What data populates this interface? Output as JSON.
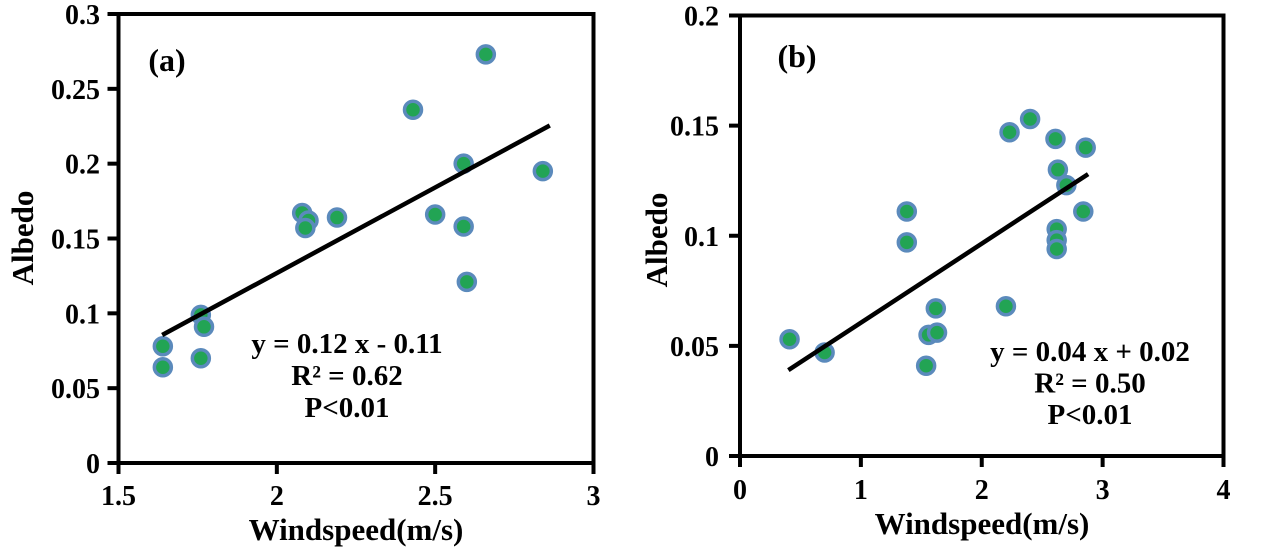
{
  "figure": {
    "background": "#ffffff",
    "description_visible_text_only": true
  },
  "chart_data": [
    {
      "type": "scatter",
      "panel_label": "(a)",
      "xlabel": "Windspeed(m/s)",
      "ylabel": "Albedo",
      "xlim": [
        1.5,
        3
      ],
      "ylim": [
        0,
        0.3
      ],
      "grid": false,
      "legend": "none",
      "xticks": [
        {
          "v": 1.5,
          "label": "1.5"
        },
        {
          "v": 2,
          "label": "2"
        },
        {
          "v": 2.5,
          "label": "2.5"
        },
        {
          "v": 3,
          "label": "3"
        }
      ],
      "yticks": [
        {
          "v": 0,
          "label": "0"
        },
        {
          "v": 0.05,
          "label": "0.05"
        },
        {
          "v": 0.1,
          "label": "0.1"
        },
        {
          "v": 0.15,
          "label": "0.15"
        },
        {
          "v": 0.2,
          "label": "0.2"
        },
        {
          "v": 0.25,
          "label": "0.25"
        },
        {
          "v": 0.3,
          "label": "0.3"
        }
      ],
      "points": [
        [
          1.64,
          0.078
        ],
        [
          1.64,
          0.064
        ],
        [
          1.76,
          0.099
        ],
        [
          1.77,
          0.091
        ],
        [
          1.76,
          0.07
        ],
        [
          2.08,
          0.167
        ],
        [
          2.1,
          0.162
        ],
        [
          2.09,
          0.157
        ],
        [
          2.19,
          0.164
        ],
        [
          2.43,
          0.236
        ],
        [
          2.5,
          0.166
        ],
        [
          2.59,
          0.158
        ],
        [
          2.6,
          0.121
        ],
        [
          2.59,
          0.2
        ],
        [
          2.66,
          0.273
        ],
        [
          2.84,
          0.195
        ]
      ],
      "trendline": {
        "x1": 1.638,
        "y1": 0.0855,
        "x2": 2.862,
        "y2": 0.2255
      },
      "equation_lines": [
        "y = 0.12 x - 0.11",
        "R² = 0.62",
        "P<0.01"
      ],
      "regression": {
        "slope": 0.12,
        "intercept": -0.11,
        "r_squared": 0.62,
        "p": "P<0.01"
      },
      "colors": {
        "marker_fill": "#22A454",
        "marker_stroke": "#5B8ABC",
        "trendline": "#000000",
        "axis": "#000000"
      }
    },
    {
      "type": "scatter",
      "panel_label": "(b)",
      "xlabel": "Windspeed(m/s)",
      "ylabel": "Albedo",
      "xlim": [
        0,
        4
      ],
      "ylim": [
        0,
        0.2
      ],
      "grid": false,
      "legend": "none",
      "xticks": [
        {
          "v": 0,
          "label": "0"
        },
        {
          "v": 1,
          "label": "1"
        },
        {
          "v": 2,
          "label": "2"
        },
        {
          "v": 3,
          "label": "3"
        },
        {
          "v": 4,
          "label": "4"
        }
      ],
      "yticks": [
        {
          "v": 0,
          "label": "0"
        },
        {
          "v": 0.05,
          "label": "0.05"
        },
        {
          "v": 0.1,
          "label": "0.1"
        },
        {
          "v": 0.15,
          "label": "0.15"
        },
        {
          "v": 0.2,
          "label": "0.2"
        }
      ],
      "points": [
        [
          0.41,
          0.053
        ],
        [
          0.7,
          0.047
        ],
        [
          1.38,
          0.111
        ],
        [
          1.38,
          0.097
        ],
        [
          1.54,
          0.041
        ],
        [
          1.56,
          0.055
        ],
        [
          1.63,
          0.056
        ],
        [
          1.62,
          0.067
        ],
        [
          2.2,
          0.068
        ],
        [
          2.23,
          0.147
        ],
        [
          2.4,
          0.153
        ],
        [
          2.61,
          0.144
        ],
        [
          2.63,
          0.13
        ],
        [
          2.7,
          0.123
        ],
        [
          2.62,
          0.103
        ],
        [
          2.62,
          0.098
        ],
        [
          2.62,
          0.094
        ],
        [
          2.86,
          0.14
        ],
        [
          2.84,
          0.111
        ]
      ],
      "trendline": {
        "x1": 0.4,
        "y1": 0.039,
        "x2": 2.88,
        "y2": 0.128
      },
      "equation_lines": [
        "y = 0.04 x + 0.02",
        "R² = 0.50",
        "P<0.01"
      ],
      "regression": {
        "slope": 0.04,
        "intercept": 0.02,
        "r_squared": 0.5,
        "p": "P<0.01"
      },
      "colors": {
        "marker_fill": "#22A454",
        "marker_stroke": "#5B8ABC",
        "trendline": "#000000",
        "axis": "#000000"
      }
    }
  ]
}
